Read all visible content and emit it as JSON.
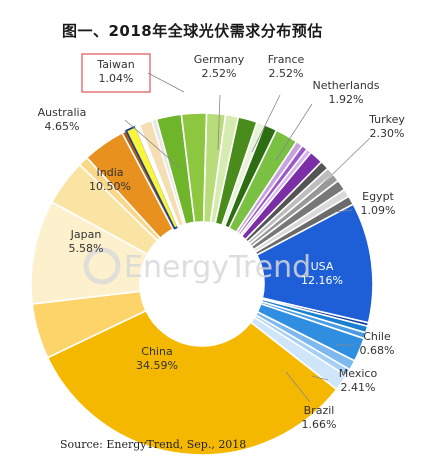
{
  "title": "图一、2018年全球光伏需求分布预估",
  "source": "Source: EnergyTrend, Sep., 2018",
  "watermark": "EnergyTrend",
  "chart_data": {
    "type": "pie",
    "title": "图一、2018年全球光伏需求分布预估",
    "slices": [
      {
        "name": "China",
        "value": 34.59,
        "value_label": "34.59%",
        "color": "#f5b800"
      },
      {
        "name": "Japan",
        "value": 5.58,
        "value_label": "5.58%",
        "color": "#fcd46a"
      },
      {
        "name": "India",
        "value": 10.5,
        "value_label": "10.50%",
        "color": "#fdf0cc"
      },
      {
        "name": "Australia",
        "value": 4.65,
        "value_label": "4.65%",
        "color": "#f9e4a4"
      },
      {
        "name": "",
        "value": 1.0,
        "color": "#fbd78a"
      },
      {
        "name": "",
        "value": 4.3,
        "color": "#e8911e"
      },
      {
        "name": "",
        "value": 0.45,
        "color": "#b35c0a"
      },
      {
        "name": "Taiwan",
        "value": 1.04,
        "value_label": "1.04%",
        "color": "#f8f43a"
      },
      {
        "name": "",
        "value": 0.4,
        "color": "#ffffff"
      },
      {
        "name": "",
        "value": 1.3,
        "color": "#f5deb3"
      },
      {
        "name": "",
        "value": 0.5,
        "color": "#e6e6e6"
      },
      {
        "name": "Germany",
        "value": 2.52,
        "value_label": "2.52%",
        "color": "#6fb52a"
      },
      {
        "name": "France",
        "value": 2.52,
        "value_label": "2.52%",
        "color": "#8dc63f"
      },
      {
        "name": "",
        "value": 1.9,
        "color": "#b9dc7a"
      },
      {
        "name": "",
        "value": 1.3,
        "color": "#d6ebb0"
      },
      {
        "name": "Netherlands",
        "value": 1.92,
        "value_label": "1.92%",
        "color": "#4a8c1c"
      },
      {
        "name": "",
        "value": 0.8,
        "color": "#e7f3d6"
      },
      {
        "name": "",
        "value": 1.3,
        "color": "#2e6e12"
      },
      {
        "name": "Turkey",
        "value": 2.3,
        "value_label": "2.30%",
        "color": "#7ac043"
      },
      {
        "name": "",
        "value": 0.7,
        "color": "#c8a2e0"
      },
      {
        "name": "",
        "value": 0.6,
        "color": "#9b59c8"
      },
      {
        "name": "",
        "value": 0.5,
        "color": "#d7b3ee"
      },
      {
        "name": "",
        "value": 1.4,
        "color": "#7a2fa6"
      },
      {
        "name": "",
        "value": 0.9,
        "color": "#555555"
      },
      {
        "name": "",
        "value": 0.8,
        "color": "#bdbdbd"
      },
      {
        "name": "",
        "value": 0.8,
        "color": "#999999"
      },
      {
        "name": "Egypt",
        "value": 1.09,
        "value_label": "1.09%",
        "color": "#777777"
      },
      {
        "name": "",
        "value": 0.8,
        "color": "#d9d9d9"
      },
      {
        "name": "",
        "value": 0.9,
        "color": "#6a6a6a"
      },
      {
        "name": "USA",
        "value": 12.16,
        "value_label": "12.16%",
        "color": "#1e5fd8"
      },
      {
        "name": "",
        "value": 0.35,
        "color": "#0f3e9e"
      },
      {
        "name": "Chile",
        "value": 0.68,
        "value_label": "0.68%",
        "color": "#1a7fd0"
      },
      {
        "name": "",
        "value": 0.6,
        "color": "#4a9be6"
      },
      {
        "name": "Mexico",
        "value": 2.41,
        "value_label": "2.41%",
        "color": "#2f8ee0"
      },
      {
        "name": "",
        "value": 1.0,
        "color": "#7db8ef"
      },
      {
        "name": "",
        "value": 0.7,
        "color": "#a6cff5"
      },
      {
        "name": "Brazil",
        "value": 1.66,
        "value_label": "1.66%",
        "color": "#cfe6fa"
      }
    ]
  }
}
